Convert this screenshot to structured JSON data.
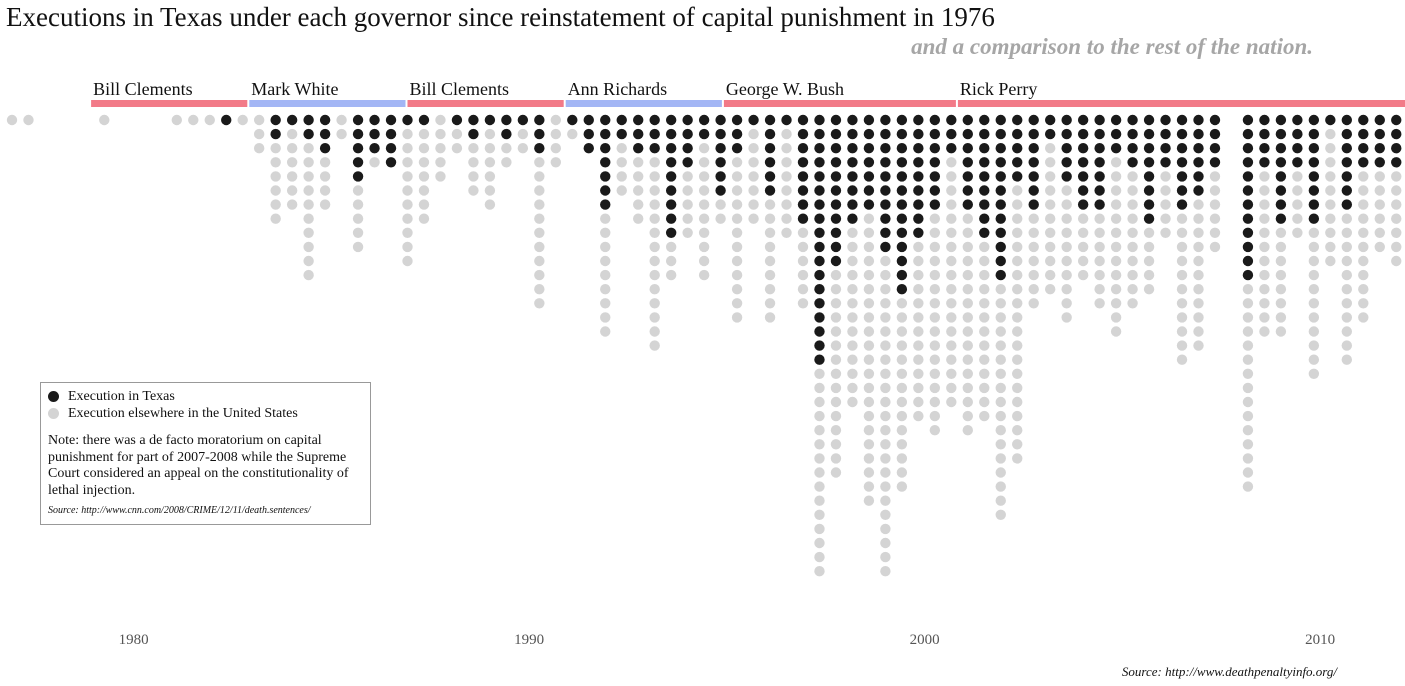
{
  "title": "Executions in Texas under each governor since reinstatement of capital punishment in 1976",
  "subtitle": "and a comparison to the rest of the nation.",
  "colors": {
    "texas": "#1a1a1a",
    "elsewhere": "#d4d4d4",
    "republican_bar": "#f27a88",
    "democrat_bar": "#a3b6f5"
  },
  "legend": {
    "items": [
      {
        "label": "Execution in Texas",
        "color": "#1a1a1a"
      },
      {
        "label": "Execution elsewhere in the United States",
        "color": "#d4d4d4"
      }
    ],
    "note": "Note: there was a de facto moratorium on capital punishment for part of 2007-2008 while the Supreme Court considered an appeal on the constitutionality of lethal injection.",
    "source": "Source: http://www.cnn.com/2008/CRIME/12/11/death.sentences/"
  },
  "footer_source": "Source: http://www.deathpenaltyinfo.org/",
  "chart_data": {
    "type": "scatter",
    "title": "Executions in Texas under each governor since reinstatement of capital punishment in 1976",
    "subtitle": "and a comparison to the rest of the nation.",
    "x_ticks": [
      "1980",
      "1990",
      "2000",
      "2010"
    ],
    "xlim": [
      "1977-01",
      "2012-12"
    ],
    "governors": [
      {
        "name": "Bill Clements",
        "start": "1979-01",
        "end": "1983-01",
        "party": "R"
      },
      {
        "name": "Mark White",
        "start": "1983-01",
        "end": "1987-01",
        "party": "D"
      },
      {
        "name": "Bill Clements",
        "start": "1987-01",
        "end": "1991-01",
        "party": "R"
      },
      {
        "name": "Ann Richards",
        "start": "1991-01",
        "end": "1995-01",
        "party": "D"
      },
      {
        "name": "George W. Bush",
        "start": "1995-01",
        "end": "2000-12",
        "party": "R"
      },
      {
        "name": "Rick Perry",
        "start": "2000-12",
        "end": "2012-12",
        "party": "R"
      }
    ],
    "series": [
      {
        "name": "Execution in Texas",
        "color": "#1a1a1a"
      },
      {
        "name": "Execution elsewhere in the United States",
        "color": "#d4d4d4"
      }
    ],
    "monthly": [
      {
        "month": "1977-01",
        "texas": 0,
        "elsewhere": 1
      },
      {
        "month": "1977-06",
        "texas": 0,
        "elsewhere": 1
      },
      {
        "month": "1979-05",
        "texas": 0,
        "elsewhere": 1
      },
      {
        "month": "1981-03",
        "texas": 0,
        "elsewhere": 1
      },
      {
        "month": "1981-08",
        "texas": 0,
        "elsewhere": 1
      },
      {
        "month": "1982-01",
        "texas": 0,
        "elsewhere": 1
      },
      {
        "month": "1982-06",
        "texas": 1,
        "elsewhere": 0
      },
      {
        "month": "1982-11",
        "texas": 0,
        "elsewhere": 1
      },
      {
        "month": "1983-04",
        "texas": 0,
        "elsewhere": 3
      },
      {
        "month": "1983-09",
        "texas": 2,
        "elsewhere": 6
      },
      {
        "month": "1984-02",
        "texas": 1,
        "elsewhere": 6
      },
      {
        "month": "1984-07",
        "texas": 2,
        "elsewhere": 10
      },
      {
        "month": "1984-12",
        "texas": 3,
        "elsewhere": 4
      },
      {
        "month": "1985-05",
        "texas": 0,
        "elsewhere": 2
      },
      {
        "month": "1985-10",
        "texas": 5,
        "elsewhere": 5
      },
      {
        "month": "1986-03",
        "texas": 3,
        "elsewhere": 1
      },
      {
        "month": "1986-08",
        "texas": 4,
        "elsewhere": 0
      },
      {
        "month": "1987-01",
        "texas": 1,
        "elsewhere": 10
      },
      {
        "month": "1987-06",
        "texas": 1,
        "elsewhere": 7
      },
      {
        "month": "1987-11",
        "texas": 0,
        "elsewhere": 5
      },
      {
        "month": "1988-04",
        "texas": 1,
        "elsewhere": 2
      },
      {
        "month": "1988-09",
        "texas": 2,
        "elsewhere": 4
      },
      {
        "month": "1989-02",
        "texas": 1,
        "elsewhere": 6
      },
      {
        "month": "1989-07",
        "texas": 2,
        "elsewhere": 2
      },
      {
        "month": "1989-12",
        "texas": 1,
        "elsewhere": 2
      },
      {
        "month": "1990-05",
        "texas": 3,
        "elsewhere": 11
      },
      {
        "month": "1990-10",
        "texas": 0,
        "elsewhere": 4
      },
      {
        "month": "1991-03",
        "texas": 1,
        "elsewhere": 1
      },
      {
        "month": "1991-08",
        "texas": 3,
        "elsewhere": 0
      },
      {
        "month": "1992-01",
        "texas": 7,
        "elsewhere": 9
      },
      {
        "month": "1992-06",
        "texas": 2,
        "elsewhere": 4
      },
      {
        "month": "1992-11",
        "texas": 3,
        "elsewhere": 5
      },
      {
        "month": "1993-04",
        "texas": 3,
        "elsewhere": 14
      },
      {
        "month": "1993-09",
        "texas": 9,
        "elsewhere": 3
      },
      {
        "month": "1994-02",
        "texas": 4,
        "elsewhere": 5
      },
      {
        "month": "1994-07",
        "texas": 2,
        "elsewhere": 10
      },
      {
        "month": "1994-12",
        "texas": 6,
        "elsewhere": 2
      },
      {
        "month": "1995-05",
        "texas": 3,
        "elsewhere": 12
      },
      {
        "month": "1995-10",
        "texas": 1,
        "elsewhere": 7
      },
      {
        "month": "1996-03",
        "texas": 6,
        "elsewhere": 9
      },
      {
        "month": "1996-08",
        "texas": 1,
        "elsewhere": 8
      },
      {
        "month": "1997-01",
        "texas": 8,
        "elsewhere": 6
      },
      {
        "month": "1997-06",
        "texas": 18,
        "elsewhere": 15
      },
      {
        "month": "1997-11",
        "texas": 11,
        "elsewhere": 15
      },
      {
        "month": "1998-04",
        "texas": 8,
        "elsewhere": 13
      },
      {
        "month": "1998-09",
        "texas": 7,
        "elsewhere": 21
      },
      {
        "month": "1999-02",
        "texas": 10,
        "elsewhere": 23
      },
      {
        "month": "1999-07",
        "texas": 13,
        "elsewhere": 14
      },
      {
        "month": "1999-12",
        "texas": 9,
        "elsewhere": 13
      },
      {
        "month": "2000-05",
        "texas": 7,
        "elsewhere": 16
      },
      {
        "month": "2000-10",
        "texas": 3,
        "elsewhere": 18
      },
      {
        "month": "2001-03",
        "texas": 7,
        "elsewhere": 16
      },
      {
        "month": "2001-08",
        "texas": 9,
        "elsewhere": 13
      },
      {
        "month": "2002-01",
        "texas": 12,
        "elsewhere": 17
      },
      {
        "month": "2002-06",
        "texas": 5,
        "elsewhere": 20
      },
      {
        "month": "2002-11",
        "texas": 7,
        "elsewhere": 7
      },
      {
        "month": "2003-04",
        "texas": 2,
        "elsewhere": 11
      },
      {
        "month": "2003-09",
        "texas": 5,
        "elsewhere": 10
      },
      {
        "month": "2004-02",
        "texas": 7,
        "elsewhere": 5
      },
      {
        "month": "2004-07",
        "texas": 7,
        "elsewhere": 7
      },
      {
        "month": "2004-12",
        "texas": 3,
        "elsewhere": 13
      },
      {
        "month": "2005-05",
        "texas": 4,
        "elsewhere": 10
      },
      {
        "month": "2005-10",
        "texas": 8,
        "elsewhere": 5
      },
      {
        "month": "2006-03",
        "texas": 4,
        "elsewhere": 5
      },
      {
        "month": "2006-08",
        "texas": 7,
        "elsewhere": 11
      },
      {
        "month": "2007-01",
        "texas": 6,
        "elsewhere": 11
      },
      {
        "month": "2007-06",
        "texas": 4,
        "elsewhere": 6
      },
      {
        "month": "2008-04",
        "texas": 12,
        "elsewhere": 15
      },
      {
        "month": "2008-09",
        "texas": 4,
        "elsewhere": 12
      },
      {
        "month": "2009-02",
        "texas": 8,
        "elsewhere": 8
      },
      {
        "month": "2009-07",
        "texas": 4,
        "elsewhere": 5
      },
      {
        "month": "2009-12",
        "texas": 8,
        "elsewhere": 11
      },
      {
        "month": "2010-05",
        "texas": 1,
        "elsewhere": 10
      },
      {
        "month": "2010-10",
        "texas": 7,
        "elsewhere": 11
      },
      {
        "month": "2011-03",
        "texas": 4,
        "elsewhere": 11
      },
      {
        "month": "2011-08",
        "texas": 4,
        "elsewhere": 6
      },
      {
        "month": "2012-01",
        "texas": 4,
        "elsewhere": 7
      },
      {
        "month": "2012-06",
        "texas": 6,
        "elsewhere": 5
      },
      {
        "month": "2012-11",
        "texas": 4,
        "elsewhere": 6
      }
    ]
  }
}
